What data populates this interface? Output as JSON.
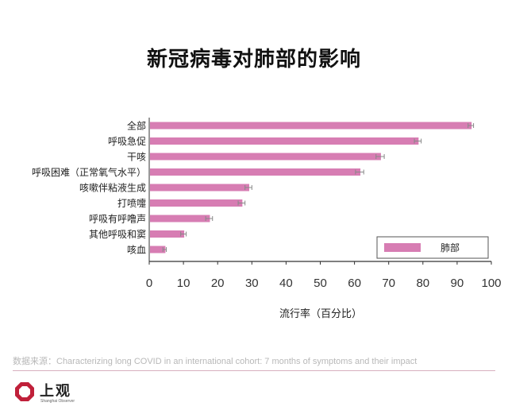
{
  "chart_data": {
    "type": "bar",
    "orientation": "horizontal",
    "title": "新冠病毒对肺部的影响",
    "xlabel": "流行率（百分比）",
    "ylabel": "",
    "xlim": [
      0,
      100
    ],
    "xticks": [
      0,
      10,
      20,
      30,
      40,
      50,
      60,
      70,
      80,
      90,
      100
    ],
    "categories": [
      "全部",
      "呼吸急促",
      "干咳",
      "呼吸困难（正常氧气水平）",
      "咳嗽伴粘液生成",
      "打喷嚏",
      "呼吸有呼噜声",
      "其他呼吸和窦",
      "咳血"
    ],
    "series": [
      {
        "name": "肺部",
        "color": "#d77db3",
        "values": [
          94,
          78.5,
          67.5,
          61.5,
          29,
          27,
          17.5,
          10,
          4.5
        ],
        "error": [
          0.8,
          1.0,
          1.2,
          1.2,
          1.0,
          1.0,
          1.0,
          0.8,
          0.5
        ]
      }
    ],
    "legend_position": "bottom-right",
    "grid": false,
    "error_bars": true
  },
  "source_text": "数据来源：Characterizing long COVID in an international cohort: 7 months of symptoms and their impact",
  "logo": {
    "name": "上观",
    "subtitle": "Shanghai Observer",
    "brand_color": "#c0203a"
  }
}
